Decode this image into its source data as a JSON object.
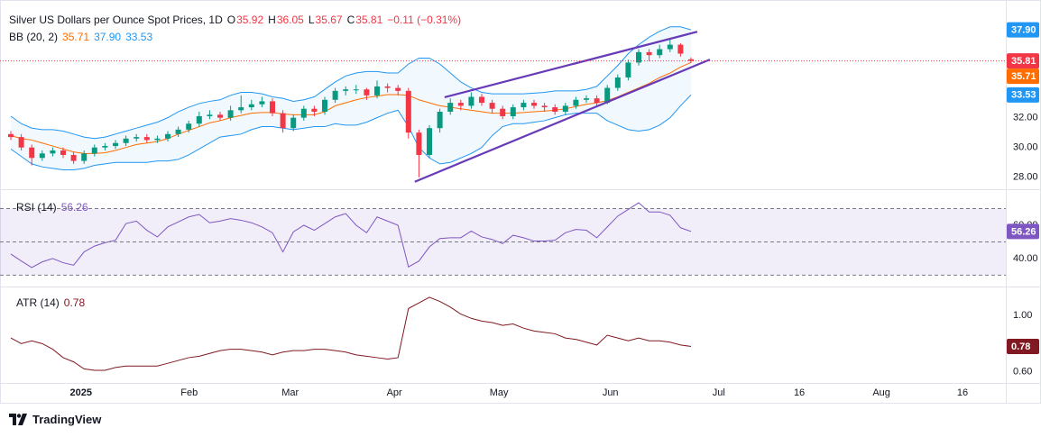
{
  "chart_data": [
    {
      "type": "candlestick",
      "title": "Silver US Dollars per Ounce Spot Prices, 1D",
      "legend": [
        {
          "label": "O",
          "value": 35.92
        },
        {
          "label": "H",
          "value": 36.05
        },
        {
          "label": "L",
          "value": 35.67
        },
        {
          "label": "C",
          "value": 35.81
        }
      ],
      "change_label": "−0.11 (−0.31%)",
      "up_color": "#089981",
      "down_color": "#f23645",
      "x": [
        0,
        2,
        4,
        6,
        8,
        10,
        12,
        14,
        16,
        18,
        20,
        22,
        24,
        26,
        28,
        30,
        32,
        34,
        36,
        38,
        40,
        42,
        44,
        46,
        48,
        50,
        52,
        54,
        56,
        58,
        60,
        62,
        64,
        66,
        68,
        70,
        72,
        74,
        76,
        78,
        80,
        82,
        84,
        86,
        88,
        90,
        92,
        94,
        96,
        98,
        100,
        102,
        104,
        106,
        108,
        110,
        112,
        114,
        116,
        118,
        120,
        122,
        124,
        126,
        128,
        130
      ],
      "open": [
        30.9,
        30.7,
        30.0,
        29.3,
        29.6,
        29.8,
        29.5,
        29.1,
        29.6,
        30.0,
        30.1,
        30.3,
        30.6,
        30.7,
        30.5,
        30.6,
        30.9,
        31.2,
        31.6,
        32.1,
        32.2,
        32.0,
        32.5,
        32.7,
        32.9,
        33.1,
        32.3,
        31.3,
        32.0,
        32.6,
        32.4,
        33.2,
        33.8,
        33.9,
        33.9,
        33.5,
        34.1,
        34.0,
        33.8,
        31.0,
        29.5,
        31.3,
        32.4,
        33.0,
        32.8,
        33.4,
        33.0,
        32.6,
        32.1,
        32.7,
        33.0,
        32.8,
        32.7,
        32.4,
        32.8,
        33.2,
        33.3,
        33.0,
        34.0,
        34.7,
        35.7,
        36.4,
        36.2,
        36.6,
        36.9,
        35.92
      ],
      "high": [
        31.1,
        30.9,
        30.2,
        29.8,
        30.0,
        30.0,
        29.7,
        29.8,
        30.2,
        30.3,
        30.5,
        30.8,
        30.9,
        30.9,
        30.8,
        31.1,
        31.4,
        31.8,
        32.4,
        32.5,
        32.4,
        32.8,
        33.5,
        33.2,
        33.4,
        33.3,
        32.5,
        32.2,
        32.8,
        32.8,
        33.4,
        34.0,
        34.1,
        34.2,
        34.0,
        34.5,
        34.3,
        34.2,
        34.0,
        31.2,
        31.5,
        32.6,
        33.3,
        33.2,
        33.7,
        33.6,
        33.2,
        32.8,
        32.9,
        33.2,
        33.2,
        33.0,
        32.9,
        33.0,
        33.4,
        33.5,
        33.5,
        34.2,
        34.9,
        35.9,
        36.6,
        36.6,
        36.9,
        37.3,
        37.0,
        36.05
      ],
      "low": [
        30.5,
        29.8,
        28.8,
        29.1,
        29.4,
        29.3,
        28.9,
        28.9,
        29.4,
        29.8,
        29.9,
        30.1,
        30.4,
        30.3,
        30.3,
        30.4,
        30.7,
        31.0,
        31.4,
        31.9,
        31.8,
        31.8,
        32.3,
        32.5,
        32.7,
        32.1,
        31.0,
        31.1,
        31.8,
        32.1,
        32.2,
        33.0,
        33.5,
        33.6,
        33.2,
        33.3,
        33.7,
        33.5,
        30.6,
        28.0,
        29.3,
        31.0,
        32.2,
        32.5,
        32.6,
        32.8,
        32.3,
        31.9,
        31.9,
        32.5,
        32.6,
        32.4,
        32.2,
        32.2,
        32.6,
        33.0,
        32.8,
        32.9,
        33.8,
        34.5,
        35.5,
        35.8,
        36.0,
        36.4,
        36.1,
        35.67
      ],
      "close": [
        30.7,
        30.0,
        29.3,
        29.6,
        29.8,
        29.5,
        29.1,
        29.6,
        30.0,
        30.1,
        30.3,
        30.6,
        30.7,
        30.5,
        30.6,
        30.9,
        31.2,
        31.6,
        32.1,
        32.2,
        32.0,
        32.5,
        32.7,
        32.9,
        33.1,
        32.3,
        31.3,
        32.0,
        32.6,
        32.4,
        33.2,
        33.8,
        33.9,
        33.9,
        33.5,
        34.1,
        34.0,
        33.8,
        31.0,
        29.5,
        31.3,
        32.4,
        33.0,
        32.8,
        33.4,
        33.0,
        32.6,
        32.1,
        32.7,
        33.0,
        32.8,
        32.7,
        32.4,
        32.8,
        33.2,
        33.3,
        33.0,
        34.0,
        34.7,
        35.7,
        36.4,
        36.2,
        36.6,
        36.9,
        36.3,
        35.81
      ],
      "bands": {
        "label": "BB (20, 2)",
        "fill": "#2196f3",
        "basis": {
          "color": "#ff6d00",
          "last_label": "35.71",
          "values": [
            30.8,
            30.6,
            30.5,
            30.3,
            30.1,
            29.9,
            29.7,
            29.6,
            29.6,
            29.65,
            29.8,
            30.0,
            30.2,
            30.3,
            30.4,
            30.6,
            30.9,
            31.15,
            31.4,
            31.65,
            31.8,
            32.0,
            32.15,
            32.3,
            32.35,
            32.35,
            32.25,
            32.2,
            32.2,
            32.2,
            32.4,
            32.8,
            33.0,
            33.2,
            33.35,
            33.45,
            33.55,
            33.55,
            33.5,
            33.2,
            33.0,
            32.8,
            32.7,
            32.6,
            32.5,
            32.4,
            32.3,
            32.3,
            32.3,
            32.35,
            32.4,
            32.45,
            32.5,
            32.6,
            32.75,
            32.9,
            33.0,
            33.15,
            33.4,
            33.7,
            34.0,
            34.3,
            34.7,
            35.0,
            35.4,
            35.71
          ]
        },
        "upper": {
          "color": "#2196f3",
          "last_label": "37.90",
          "values": [
            32.1,
            31.6,
            31.3,
            31.2,
            31.2,
            31.1,
            30.9,
            30.7,
            30.6,
            30.7,
            30.9,
            31.1,
            31.3,
            31.5,
            31.7,
            32.0,
            32.4,
            32.7,
            32.95,
            33.1,
            33.2,
            33.5,
            33.7,
            33.7,
            33.6,
            33.4,
            33.3,
            33.1,
            33.2,
            33.4,
            33.9,
            34.4,
            34.8,
            35.0,
            35.1,
            35.1,
            35.0,
            35.0,
            35.6,
            36.0,
            36.0,
            35.6,
            35.0,
            34.4,
            34.0,
            33.7,
            33.6,
            33.6,
            33.6,
            33.6,
            33.65,
            33.7,
            33.8,
            33.8,
            33.8,
            33.9,
            34.1,
            34.8,
            35.5,
            36.3,
            36.9,
            37.4,
            37.8,
            38.1,
            38.1,
            37.9
          ]
        },
        "lower": {
          "color": "#2196f3",
          "last_label": "33.53",
          "values": [
            29.9,
            29.4,
            28.9,
            28.7,
            28.6,
            28.5,
            28.5,
            28.6,
            28.8,
            28.9,
            29.0,
            29.0,
            29.0,
            29.0,
            29.1,
            29.1,
            29.2,
            29.5,
            29.9,
            30.3,
            30.7,
            30.8,
            30.9,
            31.2,
            31.4,
            31.4,
            31.3,
            31.2,
            31.3,
            31.4,
            31.4,
            31.6,
            31.5,
            31.5,
            31.7,
            32.0,
            32.3,
            32.5,
            31.4,
            30.0,
            29.3,
            28.9,
            29.0,
            29.3,
            29.6,
            30.0,
            30.8,
            31.4,
            31.6,
            31.6,
            31.7,
            31.8,
            32.0,
            32.2,
            32.3,
            32.3,
            32.3,
            31.8,
            31.5,
            31.2,
            31.1,
            31.2,
            31.5,
            32.0,
            32.8,
            33.53
          ]
        }
      },
      "trendlines": [
        {
          "color": "#673ab7",
          "x": [
            82.9,
            131.2
          ],
          "y": [
            33.37,
            37.77
          ]
        },
        {
          "color": "#673ab7",
          "x": [
            77.2,
            133.6
          ],
          "y": [
            27.7,
            35.9
          ]
        }
      ],
      "xlim": [
        -2.07,
        190.17
      ],
      "ylim": [
        27.2,
        39.9
      ],
      "yticks": [
        {
          "value": 28,
          "label": "28.00"
        },
        {
          "value": 30,
          "label": "30.00"
        },
        {
          "value": 32,
          "label": "32.00"
        }
      ],
      "grid": false
    },
    {
      "type": "line",
      "title": "RSI (14)",
      "color": "#7e57c2",
      "x": [
        0,
        2,
        4,
        6,
        8,
        10,
        12,
        14,
        16,
        18,
        20,
        22,
        24,
        26,
        28,
        30,
        32,
        34,
        36,
        38,
        40,
        42,
        44,
        46,
        48,
        50,
        52,
        54,
        56,
        58,
        60,
        62,
        64,
        66,
        68,
        70,
        72,
        74,
        76,
        78,
        80,
        82,
        84,
        86,
        88,
        90,
        92,
        94,
        96,
        98,
        100,
        102,
        104,
        106,
        108,
        110,
        112,
        114,
        116,
        118,
        120,
        122,
        124,
        126,
        128,
        130
      ],
      "values": [
        42.7,
        38.5,
        34.6,
        38.0,
        40.0,
        37.5,
        36.0,
        44.0,
        47.5,
        49.5,
        51.0,
        61.0,
        62.5,
        57.0,
        53.0,
        59.0,
        62.0,
        65.0,
        66.5,
        61.5,
        62.5,
        64.0,
        63.0,
        61.5,
        59.0,
        55.5,
        44.0,
        56.0,
        60.0,
        57.0,
        61.0,
        65.0,
        67.0,
        60.0,
        55.5,
        65.0,
        62.5,
        60.0,
        35.0,
        38.5,
        47.0,
        52.0,
        52.5,
        52.5,
        56.5,
        53.0,
        51.5,
        49.0,
        54.0,
        52.5,
        50.5,
        50.5,
        51.0,
        55.5,
        57.5,
        57.0,
        52.5,
        59.0,
        65.5,
        69.5,
        73.5,
        68.0,
        68.0,
        66.0,
        58.5,
        56.26
      ],
      "levels": [
        30,
        50,
        70
      ],
      "xlim": [
        -2.07,
        190.17
      ],
      "ylim": [
        23.2,
        81.1
      ],
      "yticks": [
        {
          "value": 40,
          "label": "40.00"
        },
        {
          "value": 60,
          "label": "60.00"
        }
      ],
      "grid": false
    },
    {
      "type": "line",
      "title": "ATR (14)",
      "color": "#801922",
      "x": [
        0,
        2,
        4,
        6,
        8,
        10,
        12,
        14,
        16,
        18,
        20,
        22,
        24,
        26,
        28,
        30,
        32,
        34,
        36,
        38,
        40,
        42,
        44,
        46,
        48,
        50,
        52,
        54,
        56,
        58,
        60,
        62,
        64,
        66,
        68,
        70,
        72,
        74,
        76,
        78,
        80,
        82,
        84,
        86,
        88,
        90,
        92,
        94,
        96,
        98,
        100,
        102,
        104,
        106,
        108,
        110,
        112,
        114,
        116,
        118,
        120,
        122,
        124,
        126,
        128,
        130
      ],
      "values": [
        0.84,
        0.8,
        0.82,
        0.8,
        0.76,
        0.7,
        0.67,
        0.62,
        0.61,
        0.61,
        0.63,
        0.64,
        0.64,
        0.64,
        0.64,
        0.66,
        0.68,
        0.7,
        0.71,
        0.73,
        0.75,
        0.76,
        0.76,
        0.75,
        0.74,
        0.72,
        0.74,
        0.75,
        0.75,
        0.76,
        0.76,
        0.75,
        0.74,
        0.72,
        0.71,
        0.7,
        0.69,
        0.7,
        1.05,
        1.09,
        1.13,
        1.1,
        1.06,
        1.01,
        0.98,
        0.96,
        0.95,
        0.93,
        0.94,
        0.91,
        0.89,
        0.88,
        0.87,
        0.84,
        0.83,
        0.81,
        0.79,
        0.86,
        0.84,
        0.82,
        0.84,
        0.82,
        0.82,
        0.81,
        0.79,
        0.78
      ],
      "xlim": [
        -2.07,
        190.17
      ],
      "ylim": [
        0.52,
        1.2
      ],
      "yticks": [
        {
          "value": 1,
          "label": "1.00"
        },
        {
          "value": 0.6,
          "label": "0.60"
        }
      ],
      "xticks": [
        {
          "value": 13.4,
          "label": "2025"
        },
        {
          "value": 34.1,
          "label": "Feb"
        },
        {
          "value": 53.4,
          "label": "Mar"
        },
        {
          "value": 73.3,
          "label": "Apr"
        },
        {
          "value": 93.3,
          "label": "May"
        },
        {
          "value": 114.6,
          "label": "Jun"
        },
        {
          "value": 135.3,
          "label": "Jul"
        },
        {
          "value": 150.7,
          "label": "16"
        },
        {
          "value": 166.4,
          "label": "Aug"
        },
        {
          "value": 181.9,
          "label": "16"
        }
      ],
      "grid": false
    }
  ],
  "footer": {
    "brand": "TradingView"
  }
}
